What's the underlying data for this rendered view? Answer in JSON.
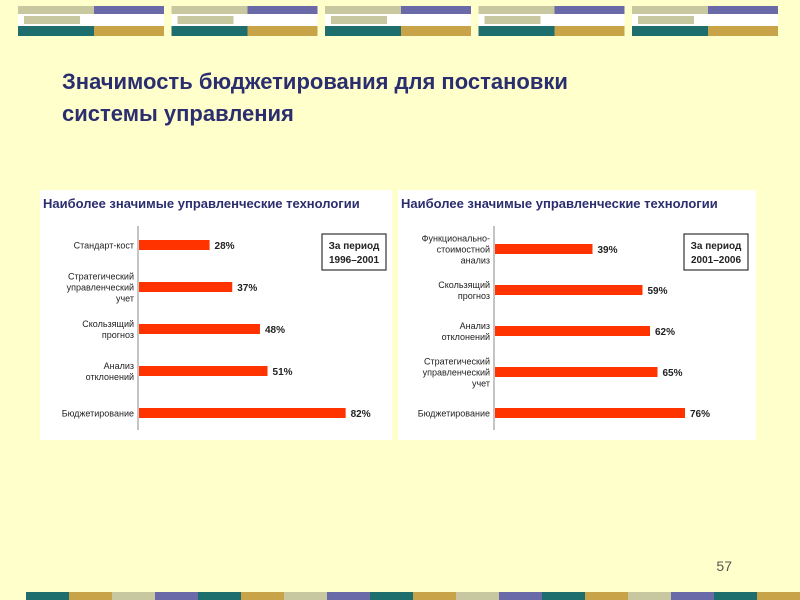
{
  "slide": {
    "title_line1": "Значимость бюджетирования для постановки",
    "title_line2": "системы управления",
    "page_number": "57"
  },
  "colors": {
    "background": "#ffffcc",
    "title": "#2b2e6e",
    "bar": "#ff3300",
    "deco_teal": "#1f6e6e",
    "deco_gold": "#c9a347",
    "deco_purple": "#6a6aa8",
    "deco_sage": "#c8c8a0"
  },
  "chart_data": [
    {
      "type": "bar",
      "orientation": "horizontal",
      "title": "Наиболее значимые управленческие технологии",
      "period_label_line1": "За период",
      "period_label_line2": "1996–2001",
      "categories": [
        [
          "Стандарт-кост"
        ],
        [
          "Стратегический",
          "управленческий",
          "учет"
        ],
        [
          "Скользящий",
          "прогноз"
        ],
        [
          "Анализ",
          "отклонений"
        ],
        [
          "Бюджетирование"
        ]
      ],
      "values": [
        28,
        37,
        48,
        51,
        82
      ],
      "value_labels": [
        "28%",
        "37%",
        "48%",
        "51%",
        "82%"
      ],
      "xlim": [
        0,
        100
      ]
    },
    {
      "type": "bar",
      "orientation": "horizontal",
      "title": "Наиболее значимые управленческие технологии",
      "period_label_line1": "За период",
      "period_label_line2": "2001–2006",
      "categories": [
        [
          "Функционально-",
          "стоимостной",
          "анализ"
        ],
        [
          "Скользящий",
          "прогноз"
        ],
        [
          "Анализ",
          "отклонений"
        ],
        [
          "Стратегический",
          "управленческий",
          "учет"
        ],
        [
          "Бюджетирование"
        ]
      ],
      "values": [
        39,
        59,
        62,
        65,
        76
      ],
      "value_labels": [
        "39%",
        "59%",
        "62%",
        "65%",
        "76%"
      ],
      "xlim": [
        0,
        100
      ]
    }
  ]
}
